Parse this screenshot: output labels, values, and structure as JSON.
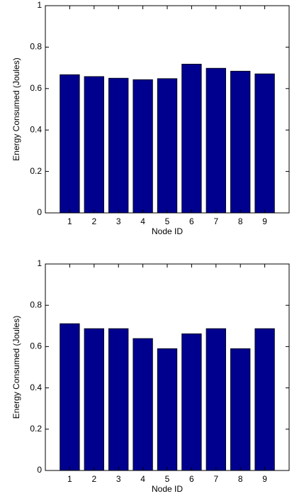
{
  "chart_data": [
    {
      "type": "bar",
      "x": [
        1,
        2,
        3,
        4,
        5,
        6,
        7,
        8,
        9
      ],
      "values": [
        0.667,
        0.658,
        0.65,
        0.643,
        0.648,
        0.718,
        0.698,
        0.684,
        0.671
      ],
      "color": "#00008f",
      "xlim": [
        0,
        10
      ],
      "xticks": [
        1,
        2,
        3,
        4,
        5,
        6,
        7,
        8,
        9
      ],
      "ylim": [
        0,
        1
      ],
      "yticks": [
        0,
        0.2,
        0.4,
        0.6,
        0.8,
        1
      ],
      "xlabel": "Node ID",
      "ylabel": "Energy Consumed (Joules)"
    },
    {
      "type": "bar",
      "x": [
        1,
        2,
        3,
        4,
        5,
        6,
        7,
        8,
        9
      ],
      "values": [
        0.711,
        0.687,
        0.687,
        0.639,
        0.59,
        0.662,
        0.687,
        0.59,
        0.687
      ],
      "color": "#00008f",
      "xlim": [
        0,
        10
      ],
      "xticks": [
        1,
        2,
        3,
        4,
        5,
        6,
        7,
        8,
        9
      ],
      "ylim": [
        0,
        1
      ],
      "yticks": [
        0,
        0.2,
        0.4,
        0.6,
        0.8,
        1
      ],
      "xlabel": "Node ID",
      "ylabel": "Energy Consumed (Joules)"
    }
  ]
}
